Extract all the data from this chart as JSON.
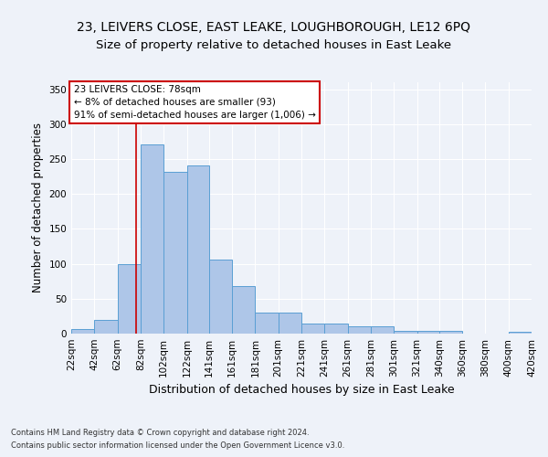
{
  "title": "23, LEIVERS CLOSE, EAST LEAKE, LOUGHBOROUGH, LE12 6PQ",
  "subtitle": "Size of property relative to detached houses in East Leake",
  "xlabel": "Distribution of detached houses by size in East Leake",
  "ylabel": "Number of detached properties",
  "bar_color": "#aec6e8",
  "bar_edge_color": "#5a9fd4",
  "annotation_line1": "23 LEIVERS CLOSE: 78sqm",
  "annotation_line2": "← 8% of detached houses are smaller (93)",
  "annotation_line3": "91% of semi-detached houses are larger (1,006) →",
  "vline_x": 78,
  "vline_color": "#cc0000",
  "annotation_box_color": "#ffffff",
  "annotation_box_edge_color": "#cc0000",
  "footer1": "Contains HM Land Registry data © Crown copyright and database right 2024.",
  "footer2": "Contains public sector information licensed under the Open Government Licence v3.0.",
  "bins": [
    22,
    42,
    62,
    82,
    102,
    122,
    141,
    161,
    181,
    201,
    221,
    241,
    261,
    281,
    301,
    321,
    340,
    360,
    380,
    400,
    420
  ],
  "bar_heights": [
    7,
    19,
    100,
    271,
    232,
    241,
    106,
    68,
    30,
    30,
    14,
    14,
    10,
    10,
    4,
    4,
    4,
    0,
    0,
    3
  ],
  "ylim": [
    0,
    360
  ],
  "yticks": [
    0,
    50,
    100,
    150,
    200,
    250,
    300,
    350
  ],
  "background_color": "#eef2f9",
  "grid_color": "#ffffff",
  "title_fontsize": 10,
  "subtitle_fontsize": 9.5,
  "xlabel_fontsize": 9,
  "ylabel_fontsize": 8.5,
  "tick_fontsize": 7.5,
  "annotation_fontsize": 7.5,
  "footer_fontsize": 6
}
